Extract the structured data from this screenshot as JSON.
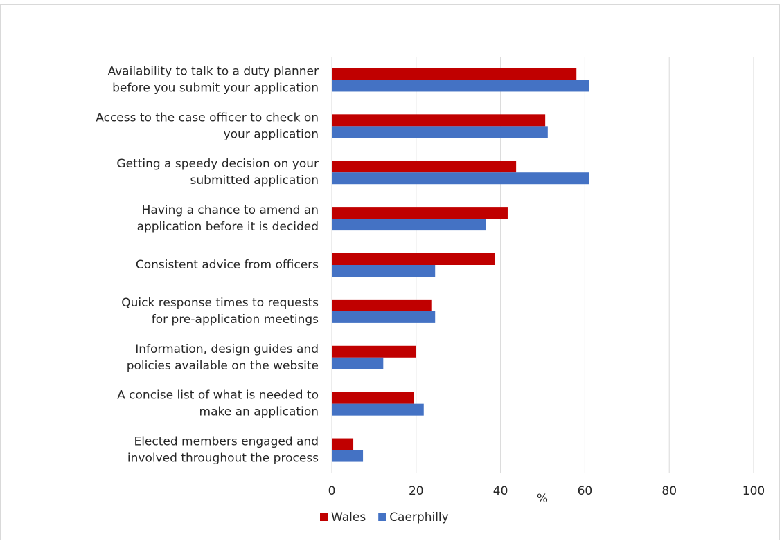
{
  "chart_data": {
    "type": "hbar",
    "categories": [
      [
        "Availability to talk to a duty planner",
        "before you submit your application"
      ],
      [
        "Access to the case officer to check on",
        "your application"
      ],
      [
        "Getting a speedy decision on your",
        "submitted application"
      ],
      [
        "Having a chance to amend an",
        "application before it is decided"
      ],
      [
        "Consistent advice from officers"
      ],
      [
        "Quick response times to requests",
        "for pre-application meetings"
      ],
      [
        "Information, design guides and",
        "policies available on the website"
      ],
      [
        "A concise list of what is needed to",
        "make an application"
      ],
      [
        "Elected members engaged and",
        "involved throughout the process"
      ]
    ],
    "series": [
      {
        "name": "Wales",
        "color": "#c00000",
        "values": [
          58,
          50.6,
          43.7,
          41.7,
          38.6,
          23.6,
          19.9,
          19.4,
          5.1
        ]
      },
      {
        "name": "Caerphilly",
        "color": "#4472c4",
        "values": [
          61,
          51.2,
          61,
          36.6,
          24.5,
          24.5,
          12.2,
          21.8,
          7.4
        ]
      }
    ],
    "x_label": "%",
    "xlim": [
      0,
      100
    ],
    "xticks": [
      0,
      20,
      40,
      60,
      80,
      100
    ],
    "grid": true,
    "legend": "bottom"
  }
}
